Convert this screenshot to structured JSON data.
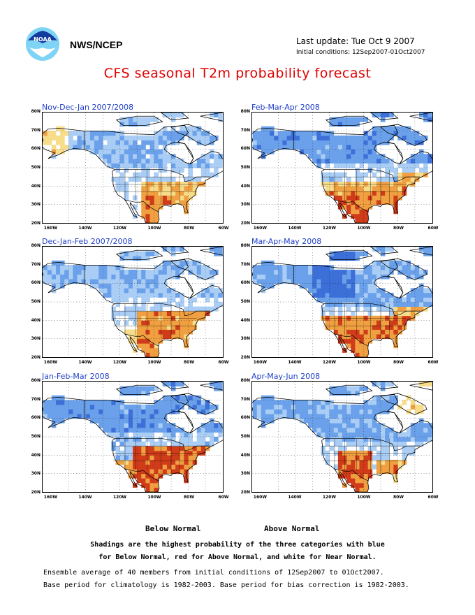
{
  "header": {
    "org": "NWS/NCEP",
    "last_update": "Last update: Tue Oct 9 2007",
    "initial_conditions": "Initial conditions: 12Sep2007-01Oct2007",
    "title": "CFS seasonal T2m probability forecast",
    "logo_text": "NOAA"
  },
  "axes": {
    "lat_labels": [
      "80N",
      "70N",
      "60N",
      "50N",
      "40N",
      "30N",
      "20N"
    ],
    "lon_labels": [
      "160W",
      "140W",
      "120W",
      "100W",
      "80W",
      "60W"
    ]
  },
  "panels": [
    {
      "label": "Nov-Dec-Jan 2007/2008"
    },
    {
      "label": "Feb-Mar-Apr 2008"
    },
    {
      "label": "Dec-Jan-Feb 2007/2008"
    },
    {
      "label": "Mar-Apr-May 2008"
    },
    {
      "label": "Jan-Feb-Mar 2008"
    },
    {
      "label": "Apr-May-Jun 2008"
    }
  ],
  "legend": {
    "below": "Below Normal",
    "above": "Above Normal"
  },
  "notes": {
    "line1": "Shadings are the highest probability of the three categories with blue",
    "line2": "for Below Normal, red for Above Normal, and white for Near Normal.",
    "ens1": "Ensemble average of 40 members from initial conditions of 12Sep2007 to 01Oct2007.",
    "ens2": "Base period for climatology is 1982-2003. Base period for bias correction is 1982-2003."
  },
  "colors": {
    "title": "#e00000",
    "panel_label": "#1e3ec8",
    "below_light": "#a9cdf5",
    "below_mid": "#6aa1ea",
    "below_dark": "#3c6fd8",
    "above_light": "#f7dc8a",
    "above_mid": "#f0a040",
    "above_dark": "#d03c1a"
  }
}
